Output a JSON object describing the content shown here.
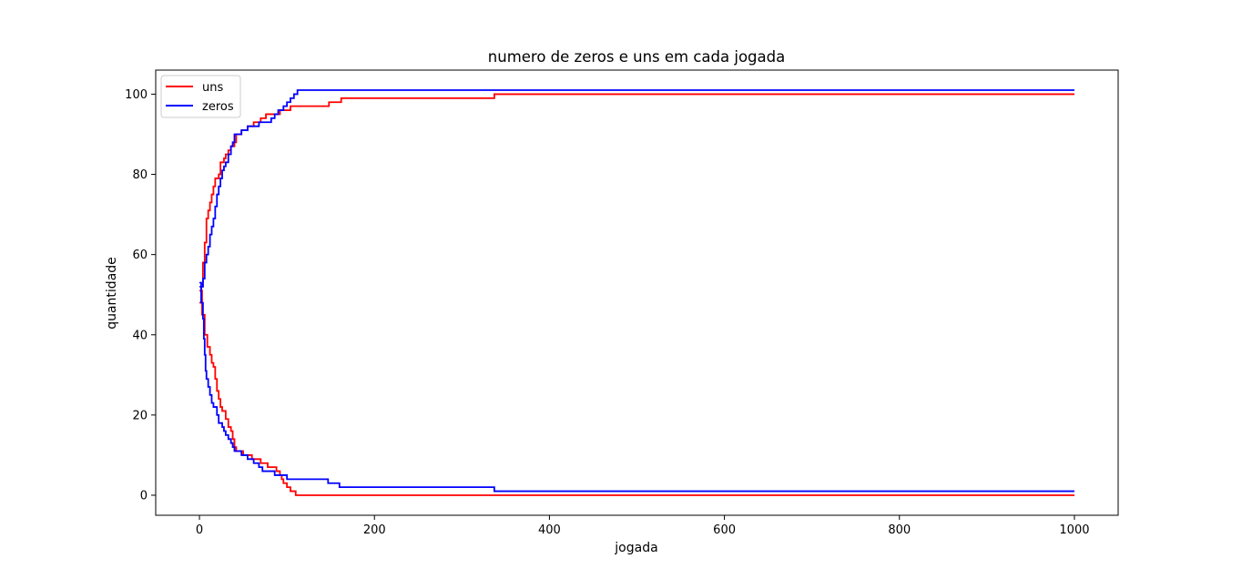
{
  "chart_data": {
    "type": "line",
    "title": "numero de zeros e uns em cada jogada",
    "xlabel": "jogada",
    "ylabel": "quantidade",
    "xlim": [
      -50,
      1050
    ],
    "ylim": [
      -5,
      106
    ],
    "xticks": [
      0,
      200,
      400,
      600,
      800,
      1000
    ],
    "yticks": [
      0,
      20,
      40,
      60,
      80,
      100
    ],
    "xtick_labels": [
      "0",
      "200",
      "400",
      "600",
      "800",
      "1000"
    ],
    "ytick_labels": [
      "0",
      "20",
      "40",
      "60",
      "80",
      "100"
    ],
    "grid": false,
    "legend_position": "top-left",
    "colors": {
      "uns": "#ff0000",
      "zeros": "#0000ff"
    },
    "series": [
      {
        "name": "uns",
        "color": "#ff0000",
        "points": [
          [
            0,
            48
          ],
          [
            2,
            52
          ],
          [
            4,
            58
          ],
          [
            6,
            63
          ],
          [
            8,
            69
          ],
          [
            10,
            71
          ],
          [
            12,
            73
          ],
          [
            14,
            75
          ],
          [
            16,
            77
          ],
          [
            18,
            79
          ],
          [
            22,
            80
          ],
          [
            24,
            83
          ],
          [
            28,
            84
          ],
          [
            30,
            85
          ],
          [
            33,
            86
          ],
          [
            36,
            87
          ],
          [
            40,
            88
          ],
          [
            42,
            90
          ],
          [
            48,
            91
          ],
          [
            55,
            92
          ],
          [
            62,
            93
          ],
          [
            70,
            94
          ],
          [
            76,
            95
          ],
          [
            88,
            95
          ],
          [
            92,
            96
          ],
          [
            100,
            96
          ],
          [
            104,
            97
          ],
          [
            145,
            97
          ],
          [
            148,
            98
          ],
          [
            160,
            98
          ],
          [
            162,
            99
          ],
          [
            335,
            99
          ],
          [
            337,
            100
          ],
          [
            1000,
            100
          ]
        ]
      },
      {
        "name": "uns",
        "color": "#ff0000",
        "points": [
          [
            0,
            51
          ],
          [
            3,
            45
          ],
          [
            6,
            40
          ],
          [
            9,
            37
          ],
          [
            12,
            35
          ],
          [
            14,
            33
          ],
          [
            16,
            32
          ],
          [
            18,
            29
          ],
          [
            20,
            26
          ],
          [
            22,
            24
          ],
          [
            24,
            22
          ],
          [
            26,
            21
          ],
          [
            30,
            19
          ],
          [
            33,
            17
          ],
          [
            36,
            16
          ],
          [
            38,
            14
          ],
          [
            40,
            12
          ],
          [
            42,
            11
          ],
          [
            50,
            10
          ],
          [
            60,
            9
          ],
          [
            70,
            8
          ],
          [
            78,
            7
          ],
          [
            88,
            6
          ],
          [
            92,
            5
          ],
          [
            94,
            4
          ],
          [
            96,
            3
          ],
          [
            100,
            2
          ],
          [
            104,
            1
          ],
          [
            110,
            0
          ],
          [
            1000,
            0
          ]
        ]
      },
      {
        "name": "zeros",
        "color": "#0000ff",
        "points": [
          [
            0,
            53
          ],
          [
            2,
            52
          ],
          [
            4,
            54
          ],
          [
            6,
            58
          ],
          [
            8,
            60
          ],
          [
            10,
            62
          ],
          [
            12,
            65
          ],
          [
            14,
            67
          ],
          [
            16,
            69
          ],
          [
            18,
            72
          ],
          [
            20,
            75
          ],
          [
            22,
            77
          ],
          [
            24,
            79
          ],
          [
            26,
            81
          ],
          [
            28,
            82
          ],
          [
            30,
            83
          ],
          [
            33,
            85
          ],
          [
            36,
            87
          ],
          [
            38,
            88
          ],
          [
            40,
            90
          ],
          [
            48,
            91
          ],
          [
            55,
            92
          ],
          [
            62,
            92
          ],
          [
            68,
            93
          ],
          [
            78,
            93
          ],
          [
            82,
            94
          ],
          [
            86,
            95
          ],
          [
            90,
            96
          ],
          [
            96,
            97
          ],
          [
            100,
            98
          ],
          [
            104,
            99
          ],
          [
            108,
            100
          ],
          [
            112,
            101
          ],
          [
            1000,
            101
          ]
        ]
      },
      {
        "name": "zeros",
        "color": "#0000ff",
        "points": [
          [
            0,
            52
          ],
          [
            2,
            48
          ],
          [
            4,
            44
          ],
          [
            5,
            39
          ],
          [
            6,
            35
          ],
          [
            7,
            31
          ],
          [
            8,
            29
          ],
          [
            10,
            27
          ],
          [
            12,
            25
          ],
          [
            14,
            23
          ],
          [
            16,
            22
          ],
          [
            20,
            20
          ],
          [
            22,
            18
          ],
          [
            26,
            17
          ],
          [
            28,
            16
          ],
          [
            30,
            15
          ],
          [
            33,
            14
          ],
          [
            36,
            13
          ],
          [
            38,
            12
          ],
          [
            40,
            11
          ],
          [
            48,
            10
          ],
          [
            52,
            10
          ],
          [
            55,
            9
          ],
          [
            62,
            8
          ],
          [
            68,
            7
          ],
          [
            72,
            6
          ],
          [
            82,
            6
          ],
          [
            86,
            5
          ],
          [
            95,
            5
          ],
          [
            100,
            4
          ],
          [
            145,
            4
          ],
          [
            147,
            3
          ],
          [
            158,
            3
          ],
          [
            160,
            2
          ],
          [
            335,
            2
          ],
          [
            337,
            1
          ],
          [
            1000,
            1
          ]
        ]
      }
    ]
  },
  "legend": [
    {
      "label": "uns",
      "color": "#ff0000"
    },
    {
      "label": "zeros",
      "color": "#0000ff"
    }
  ]
}
